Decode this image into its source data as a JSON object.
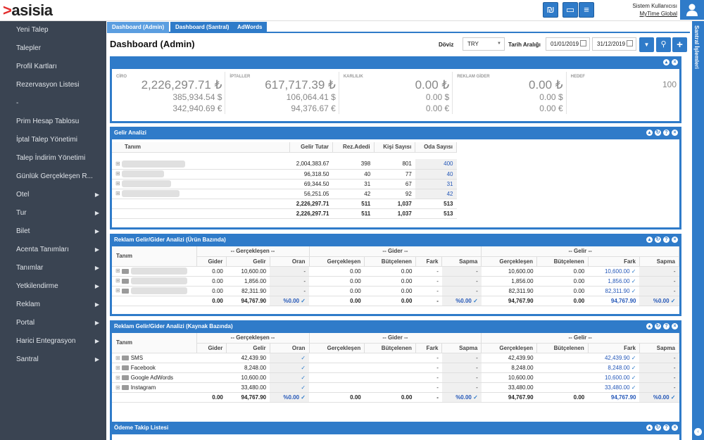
{
  "app": {
    "logo_text": "asisia"
  },
  "topbar": {
    "user_label": "Sistem Kullanıcısı",
    "user_company": "MyTime Global"
  },
  "sidebar": {
    "items": [
      {
        "label": "Yeni Talep",
        "arrow": false
      },
      {
        "label": "Talepler",
        "arrow": false
      },
      {
        "label": "Profil Kartları",
        "arrow": false
      },
      {
        "label": "Rezervasyon Listesi",
        "arrow": false
      },
      {
        "label": "-",
        "arrow": false
      },
      {
        "label": "Prim Hesap Tablosu",
        "arrow": false
      },
      {
        "label": "İptal Talep Yönetimi",
        "arrow": false
      },
      {
        "label": "Talep İndirim Yönetimi",
        "arrow": false
      },
      {
        "label": "Günlük Gerçekleşen R...",
        "arrow": false
      },
      {
        "label": "Otel",
        "arrow": true
      },
      {
        "label": "Tur",
        "arrow": true
      },
      {
        "label": "Bilet",
        "arrow": true
      },
      {
        "label": "Acenta Tanımları",
        "arrow": true
      },
      {
        "label": "Tanımlar",
        "arrow": true
      },
      {
        "label": "Yetkilendirme",
        "arrow": true
      },
      {
        "label": "Reklam",
        "arrow": true
      },
      {
        "label": "Portal",
        "arrow": true
      },
      {
        "label": "Harici Entegrasyon",
        "arrow": true
      },
      {
        "label": "Santral",
        "arrow": true
      }
    ]
  },
  "rightbar": {
    "label": "Santral İşlemleri"
  },
  "tabs": [
    "Dashboard (Admin)",
    "Dashboard (Santral)",
    "AdWords"
  ],
  "page": {
    "title": "Dashboard (Admin)",
    "currency_label": "Döviz",
    "currency_value": "TRY",
    "date_range_label": "Tarih Aralığı",
    "date_from": "01/01/2019",
    "date_to": "31/12/2019"
  },
  "kpis": [
    {
      "label": "CİRO",
      "values": [
        "2,226,297.71 ₺",
        "385,934.54 $",
        "342,940.69 €"
      ]
    },
    {
      "label": "İPTALLER",
      "values": [
        "617,717.39 ₺",
        "106,064.41 $",
        "94,376.67 €"
      ]
    },
    {
      "label": "KARLILIK",
      "values": [
        "0.00 ₺",
        "0.00 $",
        "0.00 €"
      ]
    },
    {
      "label": "REKLAM GİDER",
      "values": [
        "0.00 ₺",
        "0.00 $",
        "0.00 €"
      ]
    },
    {
      "label": "HEDEF",
      "values": [
        "100"
      ]
    }
  ],
  "gelir": {
    "title": "Gelir Analizi",
    "headers": [
      "Tanım",
      "Gelir Tutar",
      "Rez.Adedi",
      "Kişi Sayısı",
      "Oda Sayısı"
    ],
    "rows": [
      {
        "tutar": "2,004,383.67",
        "rez": "398",
        "kisi": "801",
        "oda": "400"
      },
      {
        "tutar": "96,318.50",
        "rez": "40",
        "kisi": "77",
        "oda": "40"
      },
      {
        "tutar": "69,344.50",
        "rez": "31",
        "kisi": "67",
        "oda": "31"
      },
      {
        "tutar": "56,251.05",
        "rez": "42",
        "kisi": "92",
        "oda": "42"
      }
    ],
    "totals": [
      {
        "tutar": "2,226,297.71",
        "rez": "511",
        "kisi": "1,037",
        "oda": "513"
      },
      {
        "tutar": "2,226,297.71",
        "rez": "511",
        "kisi": "1,037",
        "oda": "513"
      }
    ]
  },
  "urun": {
    "title": "Reklam Gelir/Gider Analizi (Ürün Bazında)",
    "groups": [
      "-- Gerçekleşen --",
      "-- Gider --",
      "-- Gelir --"
    ],
    "tanim": "Tanım",
    "subheaders": [
      "Gider",
      "Gelir",
      "Oran",
      "Gerçekleşen",
      "Bütçelenen",
      "Fark",
      "Sapma",
      "Gerçekleşen",
      "Bütçelenen",
      "Fark",
      "Sapma"
    ],
    "rows": [
      [
        "0.00",
        "10,600.00",
        "-",
        "0.00",
        "0.00",
        "-",
        "-",
        "10,600.00",
        "0.00",
        "10,600.00",
        "-"
      ],
      [
        "0.00",
        "1,856.00",
        "-",
        "0.00",
        "0.00",
        "-",
        "-",
        "1,856.00",
        "0.00",
        "1,856.00",
        "-"
      ],
      [
        "0.00",
        "82,311.90",
        "-",
        "0.00",
        "0.00",
        "-",
        "-",
        "82,311.90",
        "0.00",
        "82,311.90",
        "-"
      ]
    ],
    "total": [
      "0.00",
      "94,767.90",
      "%0.00",
      "0.00",
      "0.00",
      "-",
      "%0.00",
      "94,767.90",
      "0.00",
      "94,767.90",
      "%0.00"
    ]
  },
  "kaynak": {
    "title": "Reklam Gelir/Gider Analizi (Kaynak Bazında)",
    "groups": [
      "-- Gerçekleşen --",
      "-- Gider --",
      "-- Gelir --"
    ],
    "tanim": "Tanım",
    "subheaders": [
      "Gider",
      "Gelir",
      "Oran",
      "Gerçekleşen",
      "Bütçelenen",
      "Fark",
      "Sapma",
      "Gerçekleşen",
      "Bütçelenen",
      "Fark",
      "Sapma"
    ],
    "rows": [
      {
        "name": "SMS",
        "cells": [
          "",
          "42,439.90",
          "",
          "",
          "",
          "-",
          "-",
          "42,439.90",
          "",
          "42,439.90",
          "-"
        ]
      },
      {
        "name": "Facebook",
        "cells": [
          "",
          "8,248.00",
          "",
          "",
          "",
          "-",
          "-",
          "8,248.00",
          "",
          "8,248.00",
          "-"
        ]
      },
      {
        "name": "Google AdWords",
        "cells": [
          "",
          "10,600.00",
          "",
          "",
          "",
          "-",
          "-",
          "10,600.00",
          "",
          "10,600.00",
          "-"
        ]
      },
      {
        "name": "Instagram",
        "cells": [
          "",
          "33,480.00",
          "",
          "",
          "",
          "-",
          "-",
          "33,480.00",
          "",
          "33,480.00",
          "-"
        ]
      }
    ],
    "total": [
      "0.00",
      "94,767.90",
      "%0.00",
      "0.00",
      "0.00",
      "-",
      "%0.00",
      "94,767.90",
      "0.00",
      "94,767.90",
      "%0.00"
    ]
  },
  "odeme": {
    "title": "Ödeme Takip Listesi"
  },
  "colors": {
    "accent": "#2f7bc9",
    "sidebar": "#3a4452",
    "logo_accent": "#e32d2d"
  }
}
